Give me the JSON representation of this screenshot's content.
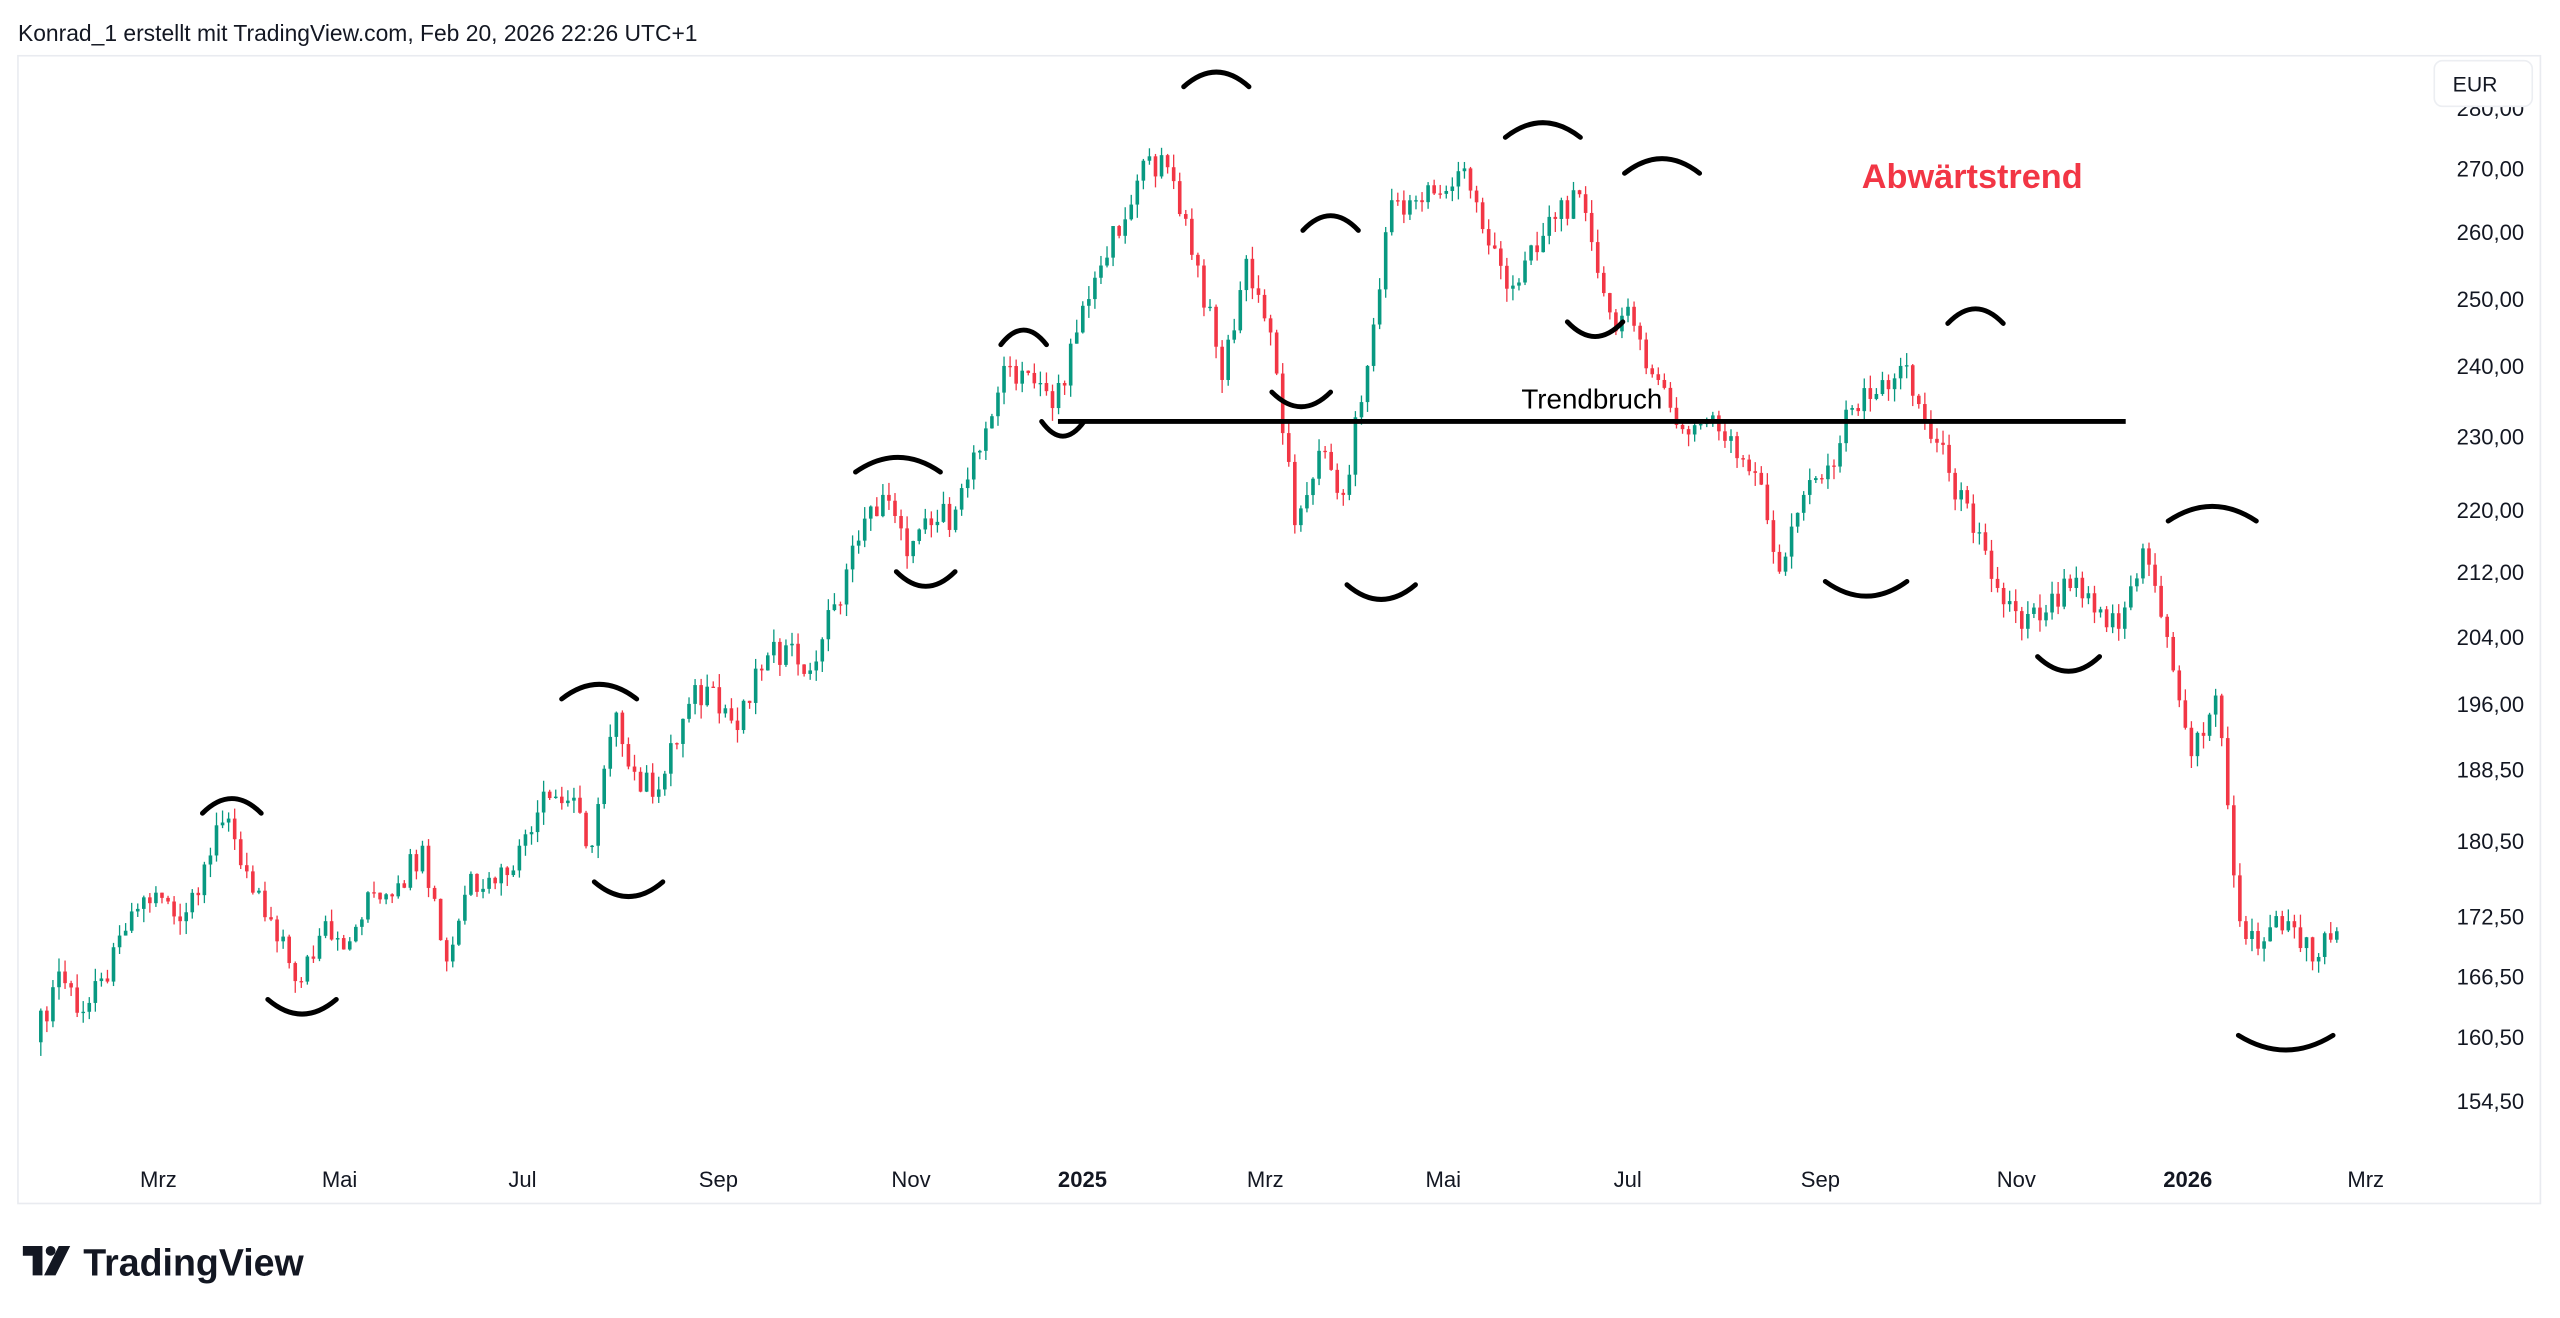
{
  "header": {
    "caption": "Konrad_1 erstellt mit TradingView.com, Feb 20, 2026 22:26 UTC+1"
  },
  "currency": "EUR",
  "logo": {
    "text": "TradingView",
    "icon": "tradingview-logo-icon"
  },
  "colors": {
    "up": "#089981",
    "down": "#f23645",
    "annotation": "#f23645",
    "drawing": "#000000"
  },
  "annotations": {
    "trend_label": "Abwärtstrend",
    "break_label": "Trendbruch",
    "trendline_price": 232
  },
  "chart_data": {
    "type": "candlestick",
    "title": "",
    "y_ticks": [
      "280,00",
      "270,00",
      "260,00",
      "250,00",
      "240,00",
      "230,00",
      "220,00",
      "212,00",
      "204,00",
      "196,00",
      "188,50",
      "180,50",
      "172,50",
      "166,50",
      "160,50",
      "154,50"
    ],
    "x_ticks": [
      {
        "label": "Mrz",
        "bold": false
      },
      {
        "label": "Mai",
        "bold": false
      },
      {
        "label": "Jul",
        "bold": false
      },
      {
        "label": "Sep",
        "bold": false
      },
      {
        "label": "Nov",
        "bold": false
      },
      {
        "label": "2025",
        "bold": true
      },
      {
        "label": "Mrz",
        "bold": false
      },
      {
        "label": "Mai",
        "bold": false
      },
      {
        "label": "Jul",
        "bold": false
      },
      {
        "label": "Sep",
        "bold": false
      },
      {
        "label": "Nov",
        "bold": false
      },
      {
        "label": "2026",
        "bold": true
      },
      {
        "label": "Mrz",
        "bold": false
      }
    ],
    "period": [
      "2024-02",
      "2026-02-20"
    ],
    "closes": [
      160,
      167,
      163,
      166,
      173,
      175,
      172,
      178,
      183,
      175,
      170,
      166,
      172,
      170,
      175,
      176,
      180,
      168,
      177,
      176,
      180,
      186,
      185,
      180,
      195,
      186,
      188,
      196,
      198,
      193,
      200,
      203,
      200,
      208,
      216,
      222,
      214,
      218,
      220,
      228,
      240,
      239,
      234,
      245,
      255,
      262,
      272,
      268,
      255,
      238,
      256,
      245,
      218,
      228,
      222,
      240,
      265,
      265,
      266,
      270,
      258,
      252,
      257,
      265,
      263,
      248,
      246,
      238,
      231,
      232,
      230,
      225,
      212,
      222,
      226,
      234,
      236,
      240,
      232,
      225,
      217,
      210,
      205,
      207,
      210,
      207,
      205,
      215,
      204,
      190,
      197,
      172,
      170,
      172,
      168,
      171
    ],
    "ylabel": "EUR",
    "xlabel": ""
  }
}
